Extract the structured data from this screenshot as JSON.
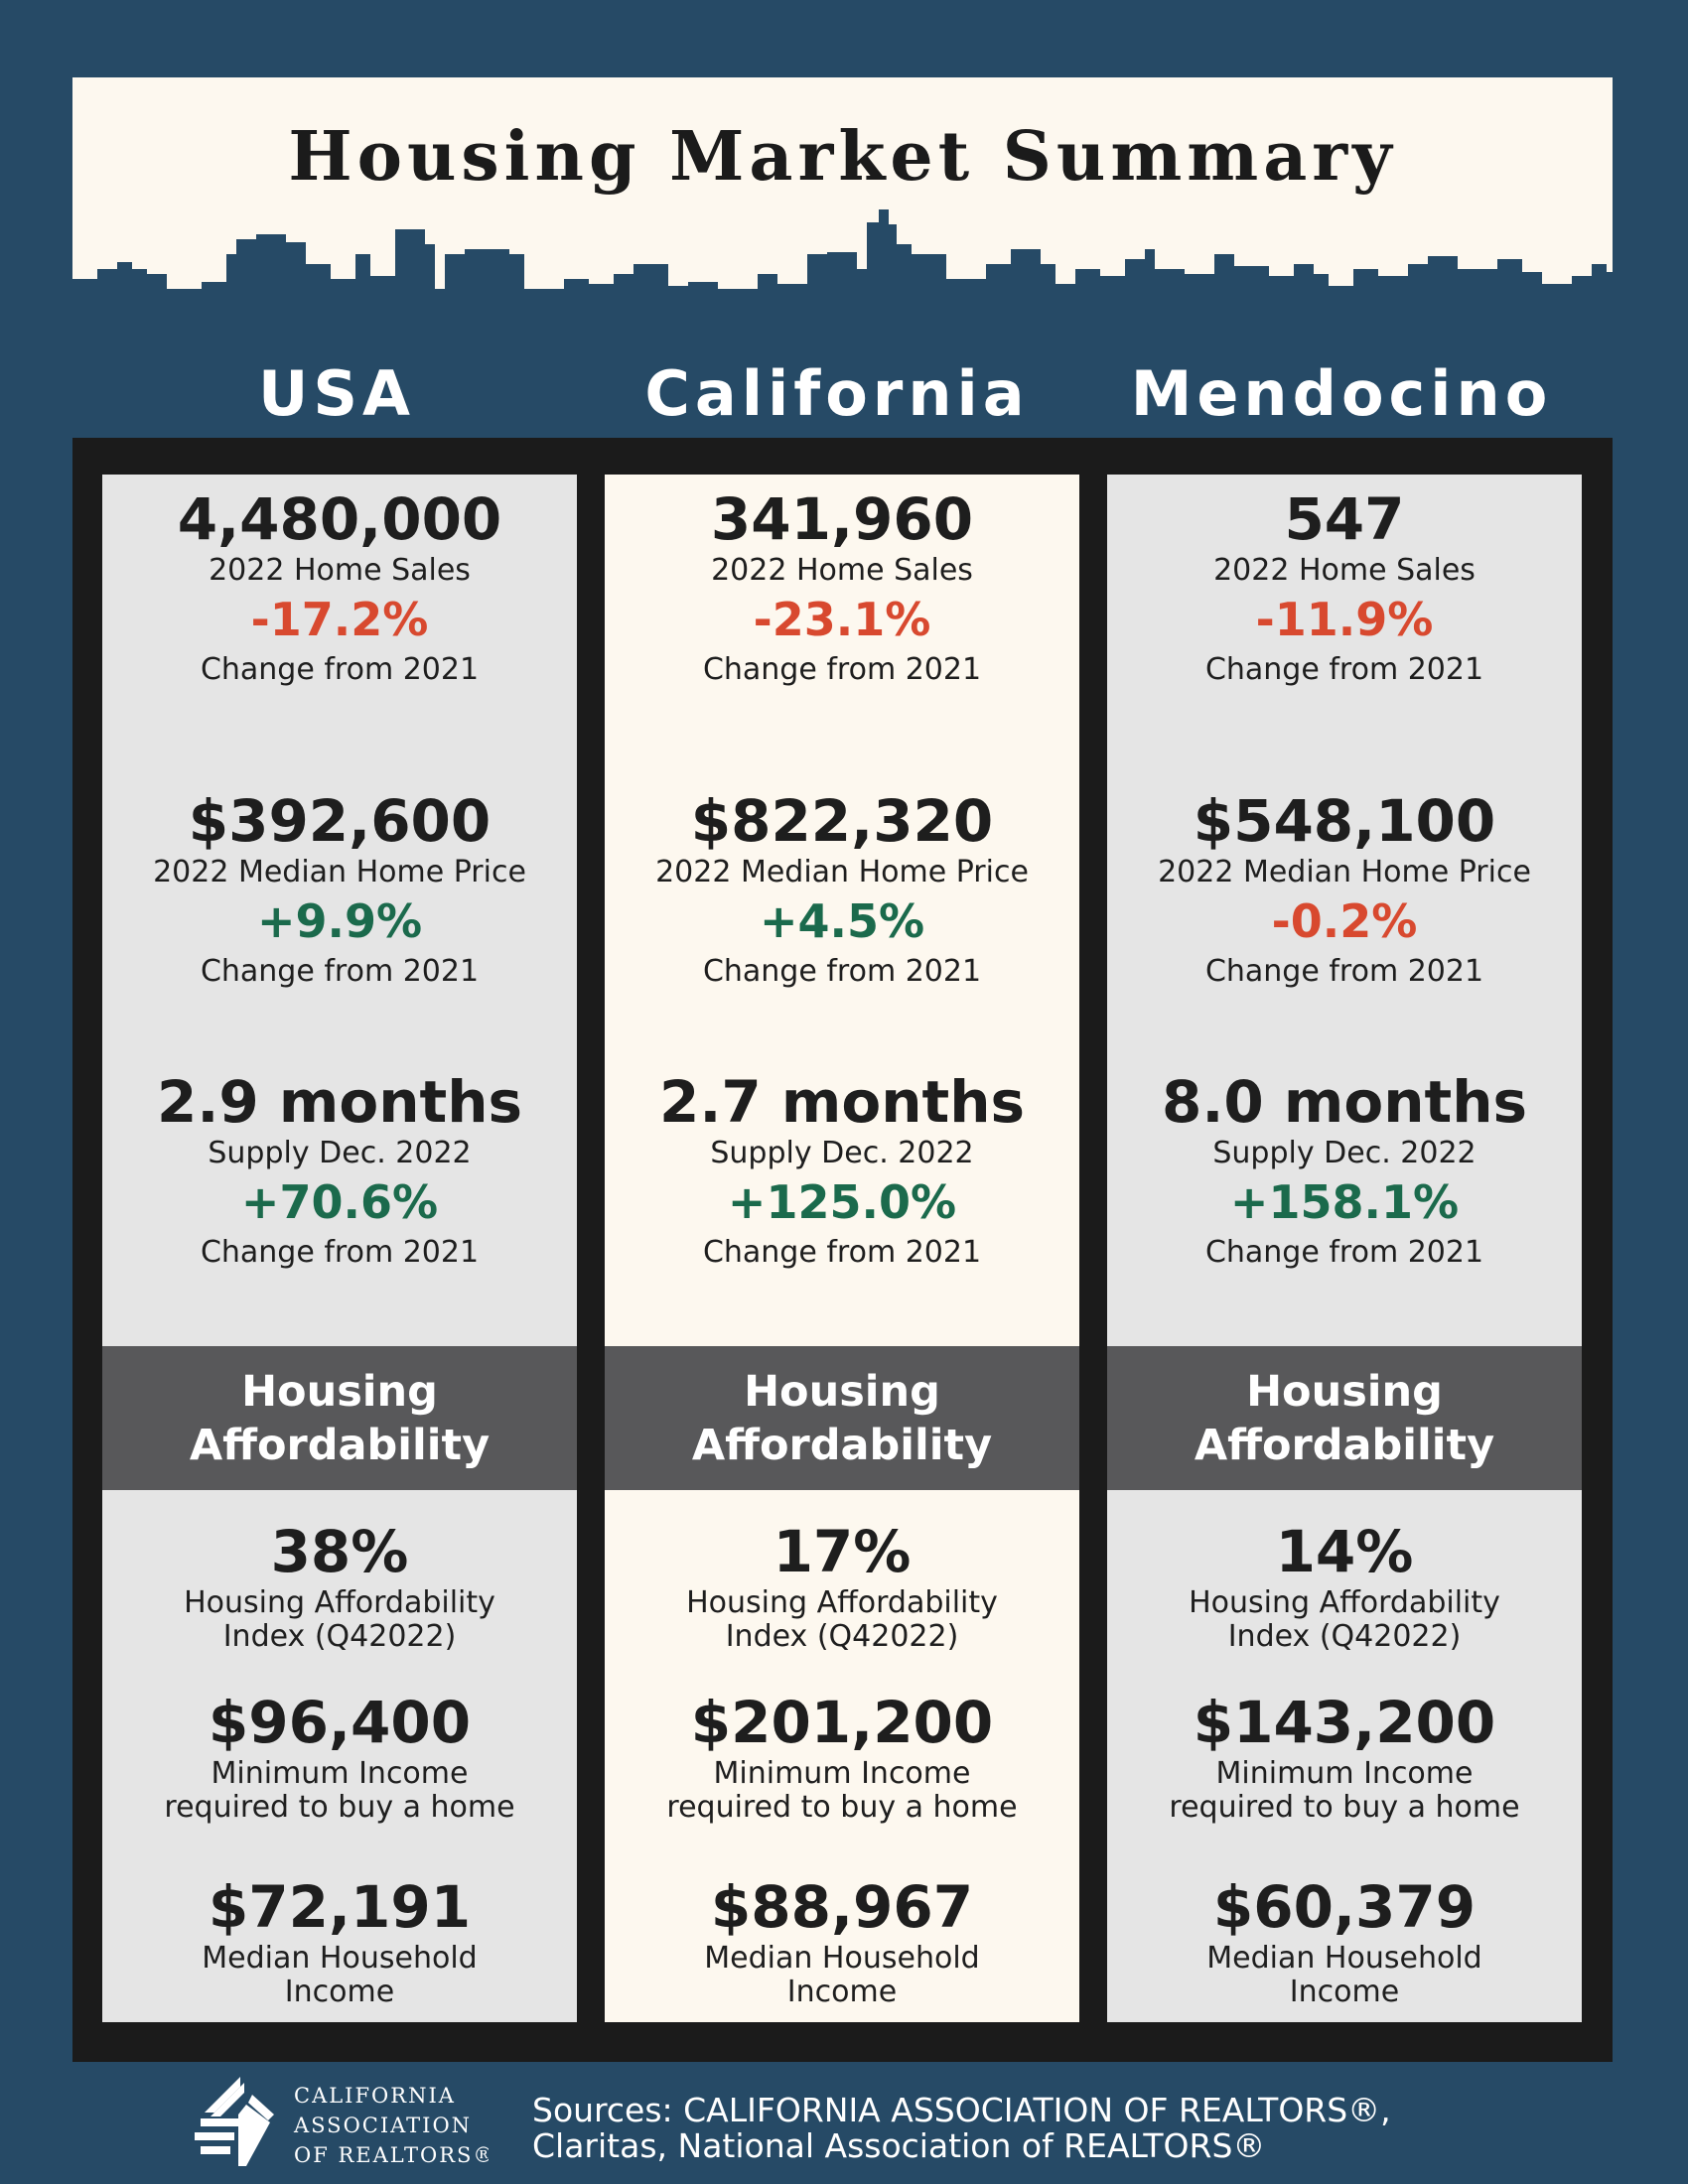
{
  "title": "Housing Market Summary",
  "columns": [
    {
      "name": "USA",
      "sales": {
        "value": "4,480,000",
        "label": "2022 Home Sales",
        "change": "-17.2%",
        "change_label": "Change from 2021"
      },
      "price": {
        "value": "$392,600",
        "label": "2022 Median Home Price",
        "change": "+9.9%",
        "change_label": "Change from 2021"
      },
      "supply": {
        "value": "2.9 months",
        "label": "Supply Dec. 2022",
        "change": "+70.6%",
        "change_label": "Change from 2021"
      },
      "affordability_heading": [
        "Housing",
        "Affordability"
      ],
      "hai": {
        "value": "38%",
        "label1": "Housing Affordability",
        "label2": "Index (Q42022)"
      },
      "min_income": {
        "value": "$96,400",
        "label1": "Minimum Income",
        "label2": "required to buy a home"
      },
      "median_income": {
        "value": "$72,191",
        "label1": "Median Household",
        "label2": "Income"
      }
    },
    {
      "name": "California",
      "sales": {
        "value": "341,960",
        "label": "2022 Home Sales",
        "change": "-23.1%",
        "change_label": "Change from 2021"
      },
      "price": {
        "value": "$822,320",
        "label": "2022 Median Home Price",
        "change": "+4.5%",
        "change_label": "Change from 2021"
      },
      "supply": {
        "value": "2.7 months",
        "label": "Supply Dec. 2022",
        "change": "+125.0%",
        "change_label": "Change from 2021"
      },
      "affordability_heading": [
        "Housing",
        "Affordability"
      ],
      "hai": {
        "value": "17%",
        "label1": "Housing Affordability",
        "label2": "Index (Q42022)"
      },
      "min_income": {
        "value": "$201,200",
        "label1": "Minimum Income",
        "label2": "required to buy a home"
      },
      "median_income": {
        "value": "$88,967",
        "label1": "Median Household",
        "label2": "Income"
      }
    },
    {
      "name": "Mendocino",
      "sales": {
        "value": "547",
        "label": "2022 Home Sales",
        "change": "-11.9%",
        "change_label": "Change from 2021"
      },
      "price": {
        "value": "$548,100",
        "label": "2022 Median Home Price",
        "change": "-0.2%",
        "change_label": "Change from 2021"
      },
      "supply": {
        "value": "8.0 months",
        "label": "Supply Dec. 2022",
        "change": "+158.1%",
        "change_label": "Change from 2021"
      },
      "affordability_heading": [
        "Housing",
        "Affordability"
      ],
      "hai": {
        "value": "14%",
        "label1": "Housing Affordability",
        "label2": "Index (Q42022)"
      },
      "min_income": {
        "value": "$143,200",
        "label1": "Minimum Income",
        "label2": "required to buy a home"
      },
      "median_income": {
        "value": "$60,379",
        "label1": "Median Household",
        "label2": "Income"
      }
    }
  ],
  "footer": {
    "logo_lines": [
      "CALIFORNIA",
      "ASSOCIATION",
      "OF REALTORS®"
    ],
    "logo_icon": "car-emblem-icon",
    "sources_line1": "Sources: CALIFORNIA ASSOCIATION OF REALTORS®,",
    "sources_line2": "Claritas, National Association of REALTORS®"
  },
  "colors": {
    "background": "#264a66",
    "cream": "#fdf8ef",
    "panel_gray": "#e5e5e5",
    "band": "#58585a",
    "negative": "#d8492f",
    "positive": "#1b6a4c"
  }
}
